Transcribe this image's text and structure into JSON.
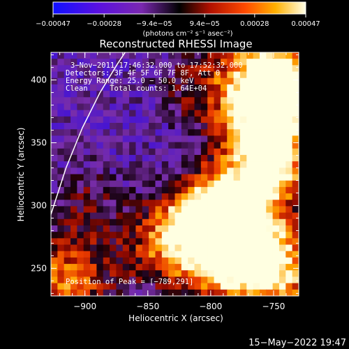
{
  "chart_data": {
    "type": "heatmap",
    "title": "Reconstructed RHESSI Image",
    "xlabel": "Heliocentric X (arcsec)",
    "ylabel": "Heliocentric Y (arcsec)",
    "xlim": [
      -927,
      -730
    ],
    "ylim": [
      228,
      422
    ],
    "x_ticks": [
      {
        "value": -900,
        "label": "−900"
      },
      {
        "value": -850,
        "label": "−850"
      },
      {
        "value": -800,
        "label": "−800"
      },
      {
        "value": -750,
        "label": "−750"
      }
    ],
    "y_ticks": [
      {
        "value": 250,
        "label": "250"
      },
      {
        "value": 300,
        "label": "300"
      },
      {
        "value": 350,
        "label": "350"
      },
      {
        "value": 400,
        "label": "400"
      }
    ],
    "colorbar": {
      "range": [
        -0.00047,
        0.00047
      ],
      "tick_labels": [
        "−0.00047",
        "−0.00028",
        "−9.4e−05",
        "9.4e−05",
        "0.00028",
        "0.00047"
      ],
      "tick_values": [
        -0.00047,
        -0.00028,
        -9.4e-05,
        9.4e-05,
        0.00028,
        0.00047
      ],
      "units": "(photons cm⁻² s⁻¹ asec⁻²)"
    },
    "annotations": {
      "time_range": "3−Nov−2011 17:46:32.000 to 17:52:32.000",
      "detectors": "Detectors: 3F 4F 5F 6F 7F 8F, Att 0",
      "energy_range": "Energy Range: 25.0 − 50.0 keV",
      "algorithm": "Clean     Total counts: 1.64E+04",
      "peak_position": "Position of Peak = [−789,291]"
    },
    "peak": {
      "x": -789,
      "y": 291
    },
    "limb_curve": [
      [
        -927,
        293
      ],
      [
        -915,
        330
      ],
      [
        -902,
        362
      ],
      [
        -888,
        390
      ],
      [
        -874,
        413
      ],
      [
        -868,
        422
      ]
    ],
    "intensity_sources": [
      {
        "x": -925,
        "y": 240,
        "amp": 0.45
      },
      {
        "x": -905,
        "y": 240,
        "amp": 0.35
      },
      {
        "x": -900,
        "y": 300,
        "amp": 0.3
      },
      {
        "x": -850,
        "y": 260,
        "amp": 0.3
      },
      {
        "x": -805,
        "y": 395,
        "amp": 0.4
      },
      {
        "x": -790,
        "y": 300,
        "amp": 1.0
      },
      {
        "x": -820,
        "y": 280,
        "amp": 0.85
      },
      {
        "x": -770,
        "y": 275,
        "amp": 0.9
      },
      {
        "x": -790,
        "y": 250,
        "amp": 0.75
      },
      {
        "x": -750,
        "y": 330,
        "amp": 0.85
      },
      {
        "x": -765,
        "y": 360,
        "amp": 0.65
      },
      {
        "x": -755,
        "y": 405,
        "amp": 0.95
      },
      {
        "x": -740,
        "y": 385,
        "amp": 0.85
      },
      {
        "x": -745,
        "y": 245,
        "amp": 0.8
      }
    ]
  },
  "footer": {
    "date_stamp": "15−May−2022 19:47"
  }
}
